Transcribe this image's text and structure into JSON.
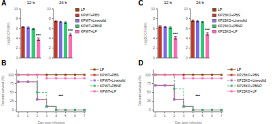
{
  "chart_data": [
    {
      "type": "bar",
      "subtitle": "A",
      "title": "12 h",
      "categories": [
        null,
        null,
        null,
        null
      ],
      "values": [
        6.3,
        6.2,
        5.9,
        3.8
      ],
      "errors": [
        0.15,
        0.15,
        0.15,
        0.25
      ],
      "colors": [
        "#c0392b",
        "#7b68ee",
        "#2ecc71",
        "#ff69b4"
      ],
      "ylabel": "Log10 CFU/mL",
      "ylim": [
        0,
        10
      ],
      "yticks": [
        0,
        2,
        4,
        6,
        8,
        10
      ],
      "annotations": [
        "***"
      ]
    },
    {
      "type": "bar",
      "title": "24 h",
      "categories": [
        null,
        null,
        null,
        null
      ],
      "values": [
        7.5,
        7.3,
        7.2,
        4.8
      ],
      "errors": [
        0.15,
        0.15,
        0.15,
        0.25
      ],
      "colors": [
        "#c0392b",
        "#7b68ee",
        "#2ecc71",
        "#ff69b4"
      ],
      "ylim": [
        0,
        10
      ],
      "yticks": [
        0,
        2,
        4,
        6,
        8,
        10
      ],
      "annotations": [
        "***"
      ],
      "legend": "right",
      "series": [
        {
          "name": "LP",
          "color": "#8B4513"
        },
        {
          "name": "KPWT+PBS",
          "color": "#c0392b"
        },
        {
          "name": "KPWT+Linezolid",
          "color": "#9370db"
        },
        {
          "name": "KPWT+PBNP",
          "color": "#3cb371"
        },
        {
          "name": "KPWT+LP",
          "color": "#ff69b4"
        }
      ]
    },
    {
      "type": "step",
      "subtitle": "B",
      "xlabel": "Day post infection",
      "ylabel": "Percent survival (%)",
      "x": [
        0,
        1,
        2,
        3,
        4,
        5,
        6,
        7
      ],
      "xlim": [
        -0.2,
        7.2
      ],
      "xticks": [
        0,
        1,
        2,
        3,
        4,
        5,
        6,
        7
      ],
      "ylim": [
        -5,
        115
      ],
      "yticks": [
        0,
        25,
        50,
        75,
        100
      ],
      "annotations": [
        "***"
      ],
      "legend": "right",
      "series": [
        {
          "name": "LP",
          "color": "#8B4513",
          "line_style": "solid",
          "marker": "square",
          "values": [
            100,
            100,
            100,
            100,
            100,
            100,
            100,
            100
          ]
        },
        {
          "name": "KPWT+PBS",
          "color": "#c0392b",
          "line_style": "solid",
          "marker": "square",
          "values": [
            80,
            80,
            30,
            10,
            0,
            0,
            0,
            0
          ]
        },
        {
          "name": "KPWT+Linezolid",
          "color": "#9370db",
          "line_style": "dashed",
          "marker": "square",
          "values": [
            80,
            80,
            30,
            10,
            0,
            0,
            0,
            0
          ]
        },
        {
          "name": "KPWT+PBNP",
          "color": "#3cb371",
          "line_style": "dashed",
          "marker": "square",
          "values": [
            100,
            100,
            50,
            10,
            0,
            0,
            0,
            0
          ]
        },
        {
          "name": "KPWT+LP",
          "color": "#ff69b4",
          "line_style": "solid",
          "marker": "square",
          "values": [
            100,
            100,
            100,
            90,
            90,
            90,
            90,
            90
          ]
        }
      ]
    },
    {
      "type": "bar",
      "subtitle": "C",
      "title": "12 h",
      "categories": [
        null,
        null,
        null,
        null
      ],
      "values": [
        6.4,
        6.3,
        6.2,
        4.1
      ],
      "errors": [
        0.15,
        0.15,
        0.15,
        0.25
      ],
      "colors": [
        "#c0392b",
        "#7b68ee",
        "#2ecc71",
        "#ff69b4"
      ],
      "ylabel": "Log10 CFU/mL",
      "ylim": [
        0,
        10
      ],
      "yticks": [
        0,
        2,
        4,
        6,
        8,
        10
      ],
      "annotations": [
        "***"
      ]
    },
    {
      "type": "bar",
      "title": "24 h",
      "categories": [
        null,
        null,
        null,
        null
      ],
      "values": [
        7.6,
        7.5,
        7.3,
        4.9
      ],
      "errors": [
        0.15,
        0.15,
        0.15,
        0.25
      ],
      "colors": [
        "#c0392b",
        "#7b68ee",
        "#2ecc71",
        "#ff69b4"
      ],
      "ylim": [
        0,
        10
      ],
      "yticks": [
        0,
        2,
        4,
        6,
        8,
        10
      ],
      "annotations": [
        "***"
      ],
      "legend": "right",
      "series": [
        {
          "name": "LP",
          "color": "#8B4513"
        },
        {
          "name": "KP25KO+PBS",
          "color": "#c0392b"
        },
        {
          "name": "KP25KO+Linezolid",
          "color": "#9370db"
        },
        {
          "name": "KP25KO+PBNP",
          "color": "#3cb371"
        },
        {
          "name": "KP25KO+LP",
          "color": "#ff69b4"
        }
      ]
    },
    {
      "type": "step",
      "subtitle": "D",
      "xlabel": "Day post infection",
      "ylabel": "Percent survival (%)",
      "x": [
        0,
        1,
        2,
        3,
        4,
        5,
        6,
        7
      ],
      "xlim": [
        -0.2,
        7.2
      ],
      "xticks": [
        0,
        1,
        2,
        3,
        4,
        5,
        6,
        7
      ],
      "ylim": [
        -5,
        115
      ],
      "yticks": [
        0,
        25,
        50,
        75,
        100
      ],
      "annotations": [
        "***"
      ],
      "legend": "right",
      "series": [
        {
          "name": "LP",
          "color": "#8B4513",
          "line_style": "solid",
          "marker": "square",
          "values": [
            100,
            100,
            100,
            100,
            100,
            100,
            100,
            100
          ]
        },
        {
          "name": "KP25KO+PBS",
          "color": "#c0392b",
          "line_style": "solid",
          "marker": "square",
          "values": [
            70,
            70,
            30,
            10,
            0,
            0,
            0,
            0
          ]
        },
        {
          "name": "KP25KO+Linezolid",
          "color": "#9370db",
          "line_style": "dashed",
          "marker": "square",
          "values": [
            70,
            70,
            30,
            10,
            0,
            0,
            0,
            0
          ]
        },
        {
          "name": "KP25KO+PBNP",
          "color": "#3cb371",
          "line_style": "dashed",
          "marker": "square",
          "values": [
            100,
            100,
            60,
            10,
            0,
            0,
            0,
            0
          ]
        },
        {
          "name": "KP25KO+LP",
          "color": "#ff69b4",
          "line_style": "solid",
          "marker": "square",
          "values": [
            100,
            100,
            100,
            90,
            90,
            90,
            90,
            90
          ]
        }
      ]
    }
  ]
}
